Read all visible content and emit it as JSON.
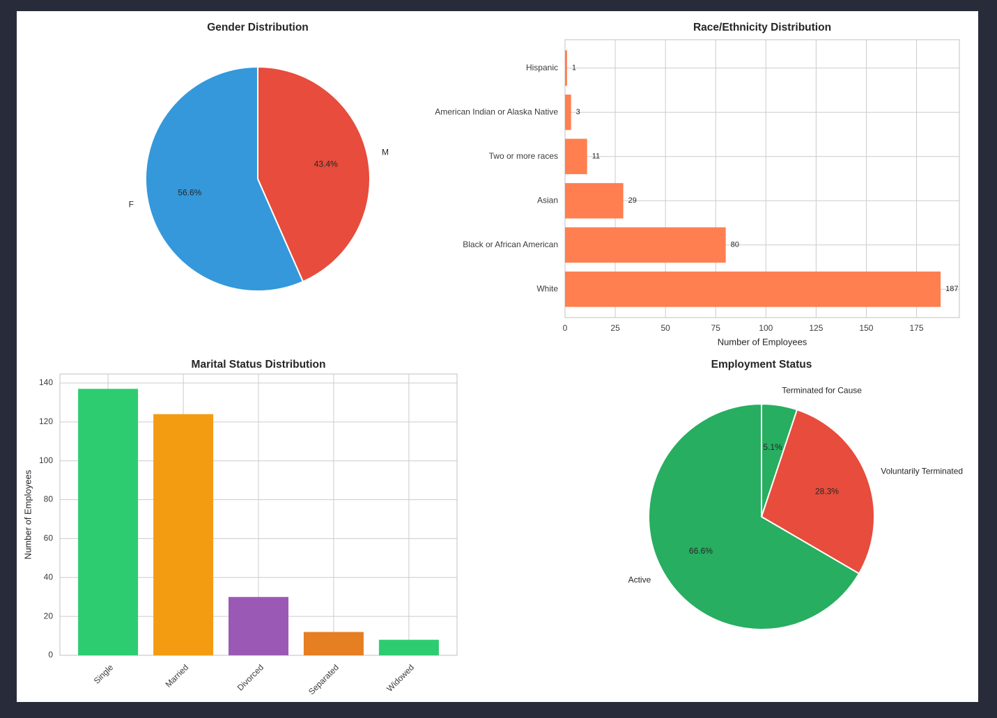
{
  "figure": {
    "background": "#282c3a",
    "canvas_background": "#ffffff",
    "text_color": "#262626",
    "grid_color": "#cccccc"
  },
  "chart_data": [
    {
      "type": "pie",
      "title": "Gender Distribution",
      "start_angle": "top",
      "direction": "clockwise",
      "slices": [
        {
          "label": "M",
          "pct": 43.4,
          "pct_label": "43.4%",
          "color": "#e74c3c"
        },
        {
          "label": "F",
          "pct": 56.6,
          "pct_label": "56.6%",
          "color": "#3498db"
        }
      ]
    },
    {
      "type": "bar",
      "orientation": "horizontal",
      "title": "Race/Ethnicity Distribution",
      "xlabel": "Number of Employees",
      "categories": [
        "Hispanic",
        "American Indian or Alaska Native",
        "Two or more races",
        "Asian",
        "Black or African American",
        "White"
      ],
      "values": [
        1,
        3,
        11,
        29,
        80,
        187
      ],
      "value_labels": [
        "1",
        "3",
        "11",
        "29",
        "80",
        "187"
      ],
      "xticks": [
        0,
        25,
        50,
        75,
        100,
        125,
        150,
        175
      ],
      "xlim": [
        0,
        196.35
      ],
      "bar_color": "#ff7f50",
      "grid": true
    },
    {
      "type": "bar",
      "orientation": "vertical",
      "title": "Marital Status Distribution",
      "ylabel": "Number of Employees",
      "categories": [
        "Single",
        "Married",
        "Divorced",
        "Separated",
        "Widowed"
      ],
      "values": [
        137,
        124,
        30,
        12,
        8
      ],
      "bar_colors": [
        "#2ecc71",
        "#f39c12",
        "#9b59b6",
        "#e67e22",
        "#2ecc71"
      ],
      "yticks": [
        0,
        20,
        40,
        60,
        80,
        100,
        120,
        140
      ],
      "ylim": [
        0,
        144.6
      ],
      "grid": true
    },
    {
      "type": "pie",
      "title": "Employment Status",
      "start_angle": "top",
      "direction": "clockwise",
      "slices": [
        {
          "label": "Terminated for Cause",
          "pct": 5.1,
          "pct_label": "5.1%",
          "color": "#27ae60"
        },
        {
          "label": "Voluntarily Terminated",
          "pct": 28.3,
          "pct_label": "28.3%",
          "color": "#e74c3c"
        },
        {
          "label": "Active",
          "pct": 66.6,
          "pct_label": "66.6%",
          "color": "#27ae60"
        }
      ]
    }
  ]
}
